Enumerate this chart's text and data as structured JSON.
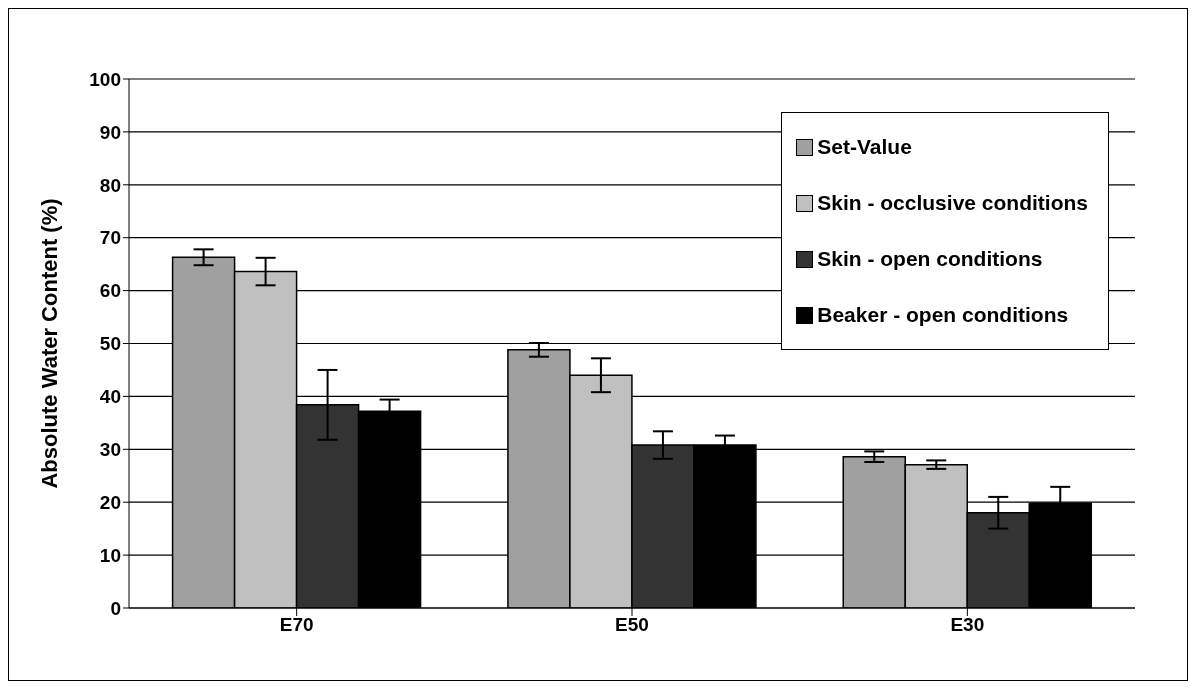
{
  "chart_data": {
    "type": "bar",
    "ylabel": "Absolute Water Content (%)",
    "categories": [
      "E70",
      "E50",
      "E30"
    ],
    "series": [
      {
        "name": "Set-Value",
        "color": "#a0a0a0",
        "values": [
          66.3,
          48.8,
          28.6
        ],
        "errors": [
          1.5,
          1.3,
          1.0
        ]
      },
      {
        "name": "Skin - occlusive conditions",
        "color": "#c0c0c0",
        "values": [
          63.6,
          44.0,
          27.1
        ],
        "errors": [
          2.6,
          3.2,
          0.8
        ]
      },
      {
        "name": "Skin - open conditions",
        "color": "#333333",
        "values": [
          38.4,
          30.8,
          18.0
        ],
        "errors": [
          6.6,
          2.6,
          3.0
        ]
      },
      {
        "name": "Beaker - open conditions",
        "color": "#000000",
        "values": [
          37.2,
          30.8,
          19.8
        ],
        "errors": [
          2.2,
          1.8,
          3.1
        ]
      }
    ],
    "ylim": [
      0,
      100
    ],
    "yticks": [
      0,
      10,
      20,
      30,
      40,
      50,
      60,
      70,
      80,
      90,
      100
    ],
    "grid": "y",
    "legend": "top right"
  }
}
